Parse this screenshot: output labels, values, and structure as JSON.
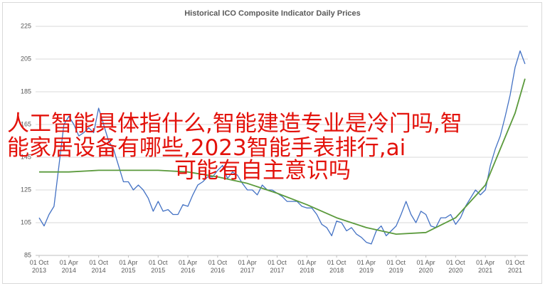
{
  "chart_data": {
    "type": "line",
    "title": "Historical ICO Composite Indicator Daily Prices",
    "x": [
      "2013-10",
      "2013-11",
      "2013-12",
      "2014-01",
      "2014-02",
      "2014-03",
      "2014-04",
      "2014-05",
      "2014-06",
      "2014-07",
      "2014-08",
      "2014-09",
      "2014-10",
      "2014-11",
      "2014-12",
      "2015-01",
      "2015-02",
      "2015-03",
      "2015-04",
      "2015-05",
      "2015-06",
      "2015-07",
      "2015-08",
      "2015-09",
      "2015-10",
      "2015-11",
      "2015-12",
      "2016-01",
      "2016-02",
      "2016-03",
      "2016-04",
      "2016-05",
      "2016-06",
      "2016-07",
      "2016-08",
      "2016-09",
      "2016-10",
      "2016-11",
      "2016-12",
      "2017-01",
      "2017-02",
      "2017-03",
      "2017-04",
      "2017-05",
      "2017-06",
      "2017-07",
      "2017-08",
      "2017-09",
      "2017-10",
      "2017-11",
      "2017-12",
      "2018-01",
      "2018-02",
      "2018-03",
      "2018-04",
      "2018-05",
      "2018-06",
      "2018-07",
      "2018-08",
      "2018-09",
      "2018-10",
      "2018-11",
      "2018-12",
      "2019-01",
      "2019-02",
      "2019-03",
      "2019-04",
      "2019-05",
      "2019-06",
      "2019-07",
      "2019-08",
      "2019-09",
      "2019-10",
      "2019-11",
      "2019-12",
      "2020-01",
      "2020-02",
      "2020-03",
      "2020-04",
      "2020-05",
      "2020-06",
      "2020-07",
      "2020-08",
      "2020-09",
      "2020-10",
      "2020-11",
      "2020-12",
      "2021-01",
      "2021-02",
      "2021-03",
      "2021-04",
      "2021-05",
      "2021-06",
      "2021-07",
      "2021-08",
      "2021-09",
      "2021-10",
      "2021-11",
      "2021-12"
    ],
    "series": [
      {
        "color": "#4472c4",
        "values": [
          108,
          103,
          110,
          115,
          140,
          165,
          170,
          165,
          158,
          160,
          163,
          160,
          175,
          165,
          155,
          150,
          140,
          130,
          130,
          125,
          128,
          125,
          120,
          112,
          118,
          112,
          113,
          110,
          110,
          116,
          115,
          122,
          128,
          130,
          133,
          133,
          137,
          140,
          132,
          136,
          134,
          129,
          125,
          125,
          122,
          128,
          125,
          125,
          123,
          121,
          118,
          118,
          118,
          115,
          114,
          114,
          110,
          104,
          102,
          97,
          106,
          105,
          100,
          102,
          98,
          96,
          93,
          92,
          100,
          103,
          97,
          100,
          103,
          110,
          118,
          110,
          105,
          112,
          110,
          103,
          102,
          108,
          108,
          110,
          104,
          108,
          115,
          120,
          125,
          122,
          125,
          140,
          150,
          158,
          170,
          183,
          200,
          210,
          202
        ]
      },
      {
        "color": "#5b9a3c",
        "x": [
          "2013-10",
          "2014-04",
          "2014-10",
          "2015-04",
          "2015-10",
          "2016-04",
          "2016-10",
          "2017-04",
          "2017-10",
          "2018-04",
          "2018-10",
          "2019-04",
          "2019-10",
          "2020-04",
          "2020-10",
          "2021-04",
          "2021-10",
          "2021-12"
        ],
        "values": [
          136,
          136,
          137,
          137,
          137,
          136,
          133,
          129,
          123,
          116,
          108,
          102,
          98,
          99,
          108,
          128,
          172,
          193
        ]
      }
    ],
    "ylim": [
      85,
      225
    ],
    "yticks": [
      85,
      105,
      125,
      145,
      165,
      185,
      205,
      225
    ],
    "grid": true,
    "xticks": [
      {
        "value": "2013-10",
        "label": "01 Oct 2013"
      },
      {
        "value": "2014-04",
        "label": "01 Apr 2014"
      },
      {
        "value": "2014-10",
        "label": "01 Oct 2014"
      },
      {
        "value": "2015-04",
        "label": "01 Apr 2015"
      },
      {
        "value": "2015-10",
        "label": "01 Oct 2015"
      },
      {
        "value": "2016-04",
        "label": "01 Apr 2016"
      },
      {
        "value": "2016-10",
        "label": "01 Oct 2016"
      },
      {
        "value": "2017-04",
        "label": "01 Apr 2017"
      },
      {
        "value": "2017-10",
        "label": "01 Oct 2017"
      },
      {
        "value": "2018-04",
        "label": "01 Apr 2018"
      },
      {
        "value": "2018-10",
        "label": "01 Oct 2018"
      },
      {
        "value": "2019-04",
        "label": "01 Apr 2019"
      },
      {
        "value": "2019-10",
        "label": "01 Oct 2019"
      },
      {
        "value": "2020-04",
        "label": "01 Apr 2020"
      },
      {
        "value": "2020-10",
        "label": "01 Oct 2020"
      },
      {
        "value": "2021-04",
        "label": "01 Apr 2021"
      },
      {
        "value": "2021-10",
        "label": "01 Oct 2021"
      }
    ]
  },
  "overlay_lines": [
    "人工智能具体指什么,智能建造专业是冷门吗,智",
    "能家居设备有哪些,2023智能手表排行,ai",
    "可能有自主意识吗"
  ]
}
